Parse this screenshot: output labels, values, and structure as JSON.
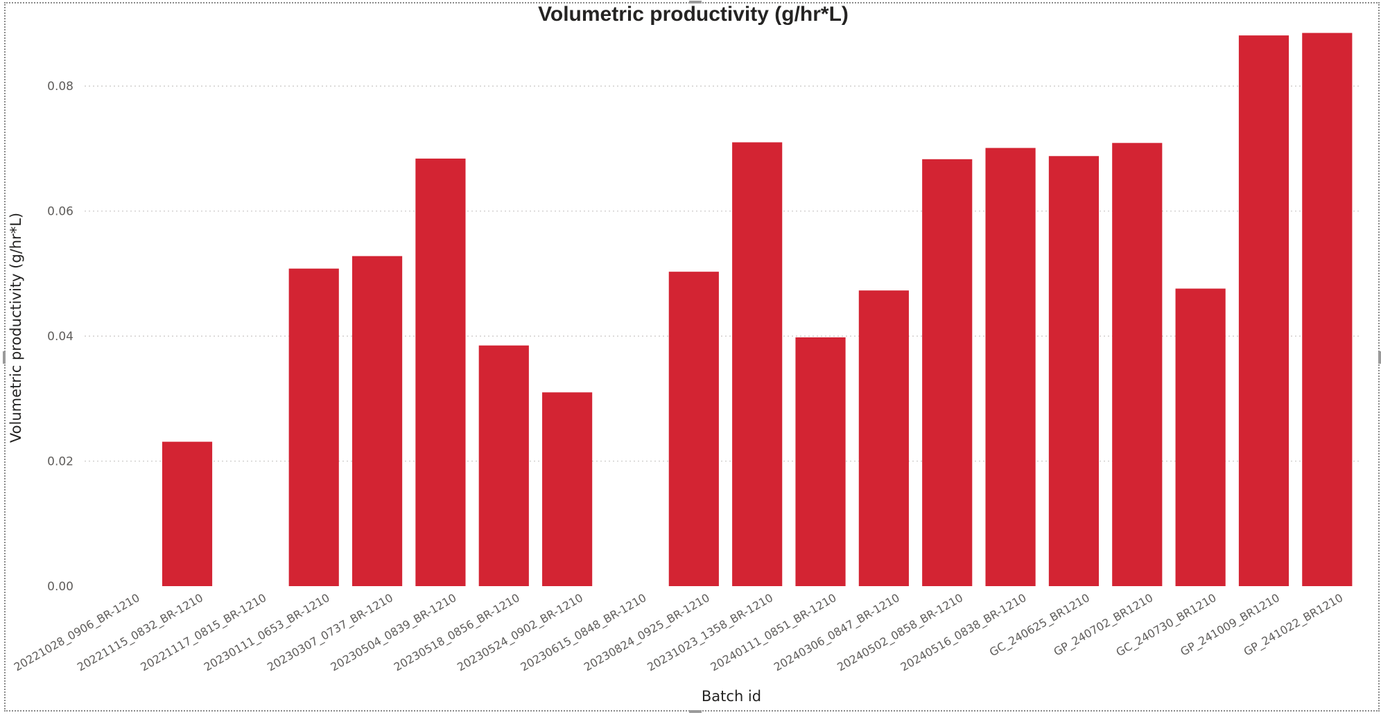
{
  "chart_data": {
    "type": "bar",
    "title": "Volumetric productivity (g/hr*L)",
    "xlabel": "Batch id",
    "ylabel": "Volumetric productivity (g/hr*L)",
    "ylim": [
      0,
      0.09
    ],
    "yticks": [
      "0.00",
      "0.02",
      "0.04",
      "0.06",
      "0.08"
    ],
    "grid": true,
    "categories": [
      "20221028_0906_BR-1210",
      "20221115_0832_BR-1210",
      "20221117_0815_BR-1210",
      "20230111_0653_BR-1210",
      "20230307_0737_BR-1210",
      "20230504_0839_BR-1210",
      "20230518_0856_BR-1210",
      "20230524_0902_BR-1210",
      "20230615_0848_BR-1210",
      "20230824_0925_BR-1210",
      "20231023_1358_BR-1210",
      "20240111_0851_BR-1210",
      "20240306_0847_BR-1210",
      "20240502_0858_BR-1210",
      "20240516_0838_BR-1210",
      "GC_240625_BR1210",
      "GP_240702_BR1210",
      "GC_240730_BR1210",
      "GP_241009_BR1210",
      "GP_241022_BR1210"
    ],
    "values": [
      0,
      0.0231,
      0,
      0.0508,
      0.0528,
      0.0684,
      0.0385,
      0.031,
      0,
      0.0503,
      0.071,
      0.0398,
      0.0473,
      0.0683,
      0.0701,
      0.0688,
      0.0709,
      0.0476,
      0.0881,
      0.0885
    ],
    "bar_color": "#d32433"
  }
}
